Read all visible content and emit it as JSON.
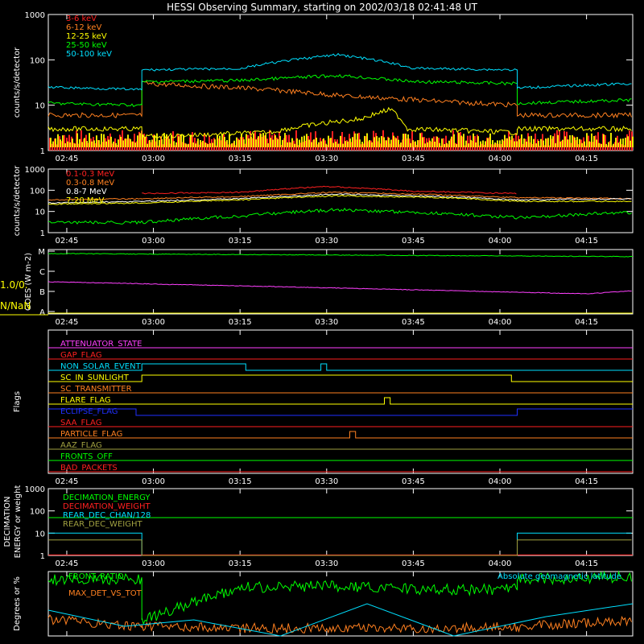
{
  "title": "HESSI Observing Summary, starting on 2002/03/18 02:41:48 UT",
  "time_ticks": [
    "02:45",
    "03:00",
    "03:15",
    "03:30",
    "03:45",
    "04:00",
    "04:15"
  ],
  "time_range": [
    "02:41:48",
    "04:23"
  ],
  "colors": {
    "background": "#000000",
    "axes": "#ffffff",
    "red": "#ff2020",
    "orange": "#ff8020",
    "yellow": "#ffff00",
    "green": "#00ff00",
    "cyan": "#00e0ff",
    "magenta": "#ff40ff",
    "blue": "#2030ff",
    "olive": "#a0a040"
  },
  "chart_data": [
    {
      "type": "line",
      "ylabel": "counts/s/detector",
      "yscale": "log",
      "ylim": [
        1,
        1000
      ],
      "yticks": [
        "1",
        "10",
        "100",
        "1000"
      ],
      "legend_position": "top-left",
      "series": [
        {
          "name": "3-6 keV",
          "color": "#ff2020",
          "x": [
            "02:41:48",
            "02:58",
            "02:58",
            "04:03",
            "04:03",
            "04:23"
          ],
          "values": [
            3,
            3,
            2,
            2,
            3,
            3
          ]
        },
        {
          "name": "6-12 keV",
          "color": "#ff8020",
          "x": [
            "02:41:48",
            "02:58",
            "02:58",
            "03:15",
            "03:33",
            "03:50",
            "04:03",
            "04:03",
            "04:23"
          ],
          "values": [
            6,
            6,
            30,
            24,
            16,
            12,
            10,
            6,
            6
          ]
        },
        {
          "name": "12-25 keV",
          "color": "#ffff00",
          "x": [
            "02:41:48",
            "02:58",
            "02:58",
            "03:20",
            "03:36",
            "03:41",
            "03:44",
            "04:03",
            "04:03",
            "04:23"
          ],
          "values": [
            3,
            3,
            2,
            2.5,
            5,
            8,
            3,
            2.5,
            3,
            3
          ]
        },
        {
          "name": "25-50 keV",
          "color": "#00ff00",
          "x": [
            "02:41:48",
            "02:58",
            "02:58",
            "03:15",
            "03:32",
            "03:45",
            "04:03",
            "04:03",
            "04:23"
          ],
          "values": [
            11,
            10,
            33,
            35,
            45,
            33,
            30,
            11,
            13
          ]
        },
        {
          "name": "50-100 keV",
          "color": "#00e0ff",
          "x": [
            "02:41:48",
            "02:58",
            "02:58",
            "03:15",
            "03:32",
            "03:45",
            "04:03",
            "04:03",
            "04:23"
          ],
          "values": [
            25,
            22,
            60,
            64,
            130,
            65,
            60,
            24,
            30
          ]
        }
      ]
    },
    {
      "type": "line",
      "ylabel": "counts/s/detector",
      "yscale": "log",
      "ylim": [
        1,
        1000
      ],
      "yticks": [
        "1",
        "10",
        "100",
        "1000"
      ],
      "legend_position": "top-left",
      "series": [
        {
          "name": "0.1-0.3 MeV",
          "color": "#ff2020",
          "x": [
            "02:58",
            "03:15",
            "03:30",
            "03:45",
            "04:03"
          ],
          "values": [
            70,
            80,
            150,
            90,
            70
          ]
        },
        {
          "name": "0.3-0.8 MeV",
          "color": "#ff8020",
          "x": [
            "02:41:48",
            "02:58",
            "03:15",
            "03:32",
            "03:50",
            "04:03",
            "04:23"
          ],
          "values": [
            35,
            40,
            50,
            80,
            60,
            45,
            40
          ]
        },
        {
          "name": "0.8-7 MeV",
          "color": "#ffffff",
          "x": [
            "02:41:48",
            "02:58",
            "03:15",
            "03:32",
            "03:50",
            "04:03",
            "04:23"
          ],
          "values": [
            25,
            30,
            40,
            65,
            50,
            35,
            40
          ]
        },
        {
          "name": "7-20 MeV",
          "color": "#ffff00",
          "x": [
            "02:41:48",
            "02:58",
            "03:15",
            "03:32",
            "03:50",
            "04:03",
            "04:23"
          ],
          "values": [
            22,
            25,
            35,
            55,
            45,
            30,
            30
          ]
        },
        {
          "name": "",
          "color": "#00ff00",
          "x": [
            "02:41:48",
            "02:58",
            "03:15",
            "03:32",
            "03:50",
            "04:03",
            "04:23"
          ],
          "values": [
            3,
            3,
            6,
            12,
            8,
            5,
            9
          ]
        }
      ]
    },
    {
      "type": "line",
      "ylabel": "GOES (W m-2)",
      "yticks": [
        "A",
        "B",
        "C",
        "M"
      ],
      "ylim": [
        0,
        3.2
      ],
      "side_text": [
        "1.0/0.",
        "N/NaN"
      ],
      "series": [
        {
          "name": "",
          "color": "#00ff00",
          "x": [
            "02:41:48",
            "04:23"
          ],
          "values": [
            3.0,
            2.85
          ]
        },
        {
          "name": "",
          "color": "#ff40ff",
          "x": [
            "02:41:48",
            "03:30",
            "04:15",
            "04:23"
          ],
          "values": [
            1.6,
            1.3,
            1.0,
            1.15
          ]
        }
      ]
    },
    {
      "type": "line",
      "ylabel": "Flags",
      "flags": [
        {
          "name": "ATTENUATOR_STATE",
          "color": "#ff40ff",
          "x": [],
          "values": []
        },
        {
          "name": "GAP_FLAG",
          "color": "#ff2020",
          "x": [],
          "values": []
        },
        {
          "name": "NON_SOLAR_EVENT",
          "color": "#00e0ff",
          "x": [
            "02:58",
            "03:16",
            "03:29",
            "03:30"
          ],
          "values": [
            1,
            0,
            1,
            0
          ]
        },
        {
          "name": "SC_IN_SUNLIGHT",
          "color": "#ffff00",
          "x": [
            "02:58",
            "04:02"
          ],
          "values": [
            1,
            0
          ]
        },
        {
          "name": "SC_TRANSMITTER",
          "color": "#ff8020",
          "x": [],
          "values": []
        },
        {
          "name": "FLARE_FLAG",
          "color": "#ffff00",
          "x": [
            "03:40",
            "03:41"
          ],
          "values": [
            1,
            0
          ]
        },
        {
          "name": "ECLIPSE_FLAG",
          "color": "#2030ff",
          "x": [
            "02:57",
            "04:03"
          ],
          "values": [
            0,
            1
          ]
        },
        {
          "name": "SAA_FLAG",
          "color": "#ff2020",
          "x": [],
          "values": []
        },
        {
          "name": "PARTICLE_FLAG",
          "color": "#ff8020",
          "x": [
            "03:34",
            "03:35"
          ],
          "values": [
            1,
            0
          ]
        },
        {
          "name": "AAZ_FLAG",
          "color": "#a0a040",
          "x": [],
          "values": []
        },
        {
          "name": "FRONTS_OFF",
          "color": "#00ff00",
          "x": [],
          "values": []
        },
        {
          "name": "BAD_PACKETS",
          "color": "#ff2020",
          "x": [],
          "values": []
        }
      ]
    },
    {
      "type": "line",
      "ylabel": "DECIMATION ENERGY or weight",
      "yscale": "log",
      "ylim": [
        1,
        1000
      ],
      "yticks": [
        "1",
        "10",
        "100",
        "1000"
      ],
      "legend_position": "top-left",
      "series": [
        {
          "name": "DECIMATION_ENERGY",
          "color": "#00ff00",
          "x": [
            "02:41:48",
            "04:23"
          ],
          "values": [
            50,
            50
          ]
        },
        {
          "name": "DECIMATION_WEIGHT",
          "color": "#ff2020",
          "x": [
            "02:41:48",
            "04:23"
          ],
          "values": [
            1.05,
            1.05
          ]
        },
        {
          "name": "REAR_DEC_CHAN/128",
          "color": "#00e0ff",
          "x": [
            "02:41:48",
            "02:58",
            "02:58",
            "04:03",
            "04:03",
            "04:23"
          ],
          "values": [
            10,
            10,
            1,
            1,
            10,
            10
          ]
        },
        {
          "name": "REAR_DEC_WEIGHT",
          "color": "#a0a040",
          "x": [
            "02:41:48",
            "02:58",
            "02:58",
            "04:03",
            "04:03",
            "04:23"
          ],
          "values": [
            5,
            5,
            1,
            1,
            5,
            5
          ]
        }
      ]
    },
    {
      "type": "line",
      "ylabel": "Degrees or %",
      "legend_position": "top-left",
      "ylim": [
        0,
        100
      ],
      "series": [
        {
          "name": "FRONT_RATIO",
          "color": "#00ff00",
          "x": [
            "02:41:48",
            "02:58",
            "02:58",
            "03:15",
            "03:30",
            "03:45",
            "04:03",
            "04:03",
            "04:23"
          ],
          "values": [
            88,
            88,
            25,
            75,
            78,
            72,
            72,
            88,
            92
          ]
        },
        {
          "name": "MAX_DET_VS_TOT",
          "color": "#ff8020",
          "x": [
            "02:41:48",
            "02:58",
            "03:15",
            "03:30",
            "03:45",
            "04:03",
            "04:23"
          ],
          "values": [
            25,
            15,
            12,
            12,
            12,
            14,
            25
          ]
        },
        {
          "name": "Absolute geomagnetic latitude",
          "color": "#00e0ff",
          "x": [
            "02:41:48",
            "02:55",
            "03:07",
            "03:22",
            "03:37",
            "03:52",
            "04:08",
            "04:23"
          ],
          "values": [
            40,
            15,
            25,
            0,
            50,
            0,
            30,
            50
          ]
        }
      ]
    }
  ]
}
